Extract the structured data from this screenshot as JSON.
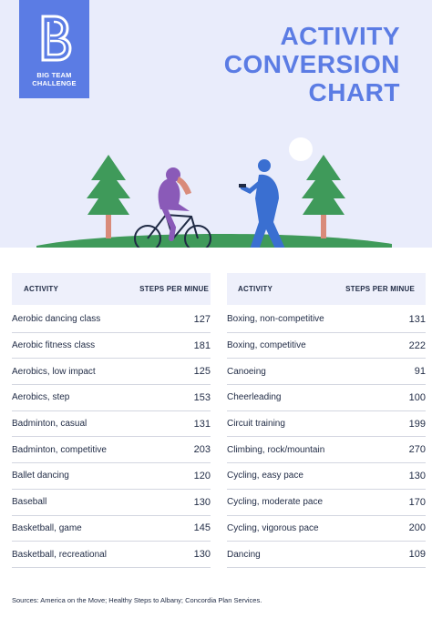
{
  "logo": {
    "line1": "BIG TEAM",
    "line2": "CHALLENGE"
  },
  "title": {
    "line1": "ACTIVITY",
    "line2": "CONVERSION",
    "line3": "CHART"
  },
  "colors": {
    "accent": "#5b7ce4",
    "hero_bg": "#e9ecfb",
    "header_bg": "#eef0fb",
    "grass": "#3f9a5a",
    "tree": "#3f9a5a",
    "trunk": "#d98b7a",
    "walker": "#3a6fd1",
    "cyclist": "#8a5ab8"
  },
  "table_left": {
    "header_activity": "ACTIVITY",
    "header_steps": "STEPS PER MINUE",
    "rows": [
      {
        "activity": "Aerobic dancing class",
        "steps": "127"
      },
      {
        "activity": "Aerobic fitness class",
        "steps": "181"
      },
      {
        "activity": "Aerobics, low impact",
        "steps": "125"
      },
      {
        "activity": "Aerobics, step",
        "steps": "153"
      },
      {
        "activity": "Badminton, casual",
        "steps": "131"
      },
      {
        "activity": "Badminton, competitive",
        "steps": "203"
      },
      {
        "activity": "Ballet dancing",
        "steps": "120"
      },
      {
        "activity": "Baseball",
        "steps": "130"
      },
      {
        "activity": "Basketball, game",
        "steps": "145"
      },
      {
        "activity": "Basketball, recreational",
        "steps": "130"
      }
    ]
  },
  "table_right": {
    "header_activity": "ACTIVITY",
    "header_steps": "STEPS PER MINUE",
    "rows": [
      {
        "activity": "Boxing, non-competitive",
        "steps": "131"
      },
      {
        "activity": "Boxing, competitive",
        "steps": "222"
      },
      {
        "activity": "Canoeing",
        "steps": "91"
      },
      {
        "activity": "Cheerleading",
        "steps": "100"
      },
      {
        "activity": "Circuit training",
        "steps": "199"
      },
      {
        "activity": "Climbing, rock/mountain",
        "steps": "270"
      },
      {
        "activity": "Cycling, easy pace",
        "steps": "130"
      },
      {
        "activity": "Cycling, moderate pace",
        "steps": "170"
      },
      {
        "activity": "Cycling, vigorous pace",
        "steps": "200"
      },
      {
        "activity": "Dancing",
        "steps": "109"
      }
    ]
  },
  "sources": "Sources: America on the Move; Healthy Steps to Albany; Concordia Plan Services."
}
